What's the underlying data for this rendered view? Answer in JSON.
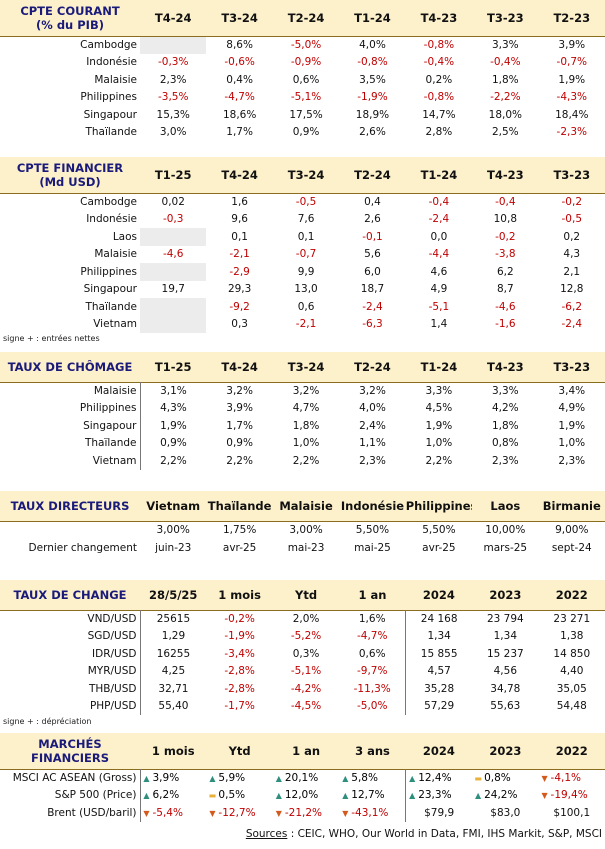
{
  "current_account": {
    "title_line1": "CPTE COURANT",
    "title_line2": "(% du PIB)",
    "columns": [
      "T4-24",
      "T3-24",
      "T2-24",
      "T1-24",
      "T4-23",
      "T3-23",
      "T2-23"
    ],
    "rows": [
      {
        "label": "Cambodge",
        "values": [
          "",
          "8,6%",
          "-5,0%",
          "4,0%",
          "-0,8%",
          "3,3%",
          "3,9%"
        ]
      },
      {
        "label": "Indonésie",
        "values": [
          "-0,3%",
          "-0,6%",
          "-0,9%",
          "-0,8%",
          "-0,4%",
          "-0,4%",
          "-0,7%"
        ]
      },
      {
        "label": "Malaisie",
        "values": [
          "2,3%",
          "0,4%",
          "0,6%",
          "3,5%",
          "0,2%",
          "1,8%",
          "1,9%"
        ]
      },
      {
        "label": "Philippines",
        "values": [
          "-3,5%",
          "-4,7%",
          "-5,1%",
          "-1,9%",
          "-0,8%",
          "-2,2%",
          "-4,3%"
        ]
      },
      {
        "label": "Singapour",
        "values": [
          "15,3%",
          "18,6%",
          "17,5%",
          "18,9%",
          "14,7%",
          "18,0%",
          "18,4%"
        ]
      },
      {
        "label": "Thaïlande",
        "values": [
          "3,0%",
          "1,7%",
          "0,9%",
          "2,6%",
          "2,8%",
          "2,5%",
          "-2,3%"
        ]
      }
    ]
  },
  "financial_account": {
    "title_line1": "CPTE FINANCIER",
    "title_line2": "(Md USD)",
    "columns": [
      "T1-25",
      "T4-24",
      "T3-24",
      "T2-24",
      "T1-24",
      "T4-23",
      "T3-23"
    ],
    "rows": [
      {
        "label": "Cambodge",
        "values": [
          "0,02",
          "1,6",
          "-0,5",
          "0,4",
          "-0,4",
          "-0,4",
          "-0,2"
        ]
      },
      {
        "label": "Indonésie",
        "values": [
          "-0,3",
          "9,6",
          "7,6",
          "2,6",
          "-2,4",
          "10,8",
          "-0,5"
        ]
      },
      {
        "label": "Laos",
        "values": [
          "",
          "0,1",
          "0,1",
          "-0,1",
          "0,0",
          "-0,2",
          "0,2"
        ]
      },
      {
        "label": "Malaisie",
        "values": [
          "-4,6",
          "-2,1",
          "-0,7",
          "5,6",
          "-4,4",
          "-3,8",
          "4,3"
        ]
      },
      {
        "label": "Philippines",
        "values": [
          "",
          "-2,9",
          "9,9",
          "6,0",
          "4,6",
          "6,2",
          "2,1"
        ]
      },
      {
        "label": "Singapour",
        "values": [
          "19,7",
          "29,3",
          "13,0",
          "18,7",
          "4,9",
          "8,7",
          "12,8"
        ]
      },
      {
        "label": "Thaïlande",
        "values": [
          "",
          "-9,2",
          "0,6",
          "-2,4",
          "-5,1",
          "-4,6",
          "-6,2"
        ]
      },
      {
        "label": "Vietnam",
        "values": [
          "",
          "0,3",
          "-2,1",
          "-6,3",
          "1,4",
          "-1,6",
          "-2,4"
        ]
      }
    ],
    "note": "signe + : entrées nettes"
  },
  "unemployment": {
    "title": "TAUX DE CHÔMAGE",
    "columns": [
      "T1-25",
      "T4-24",
      "T3-24",
      "T2-24",
      "T1-24",
      "T4-23",
      "T3-23"
    ],
    "rows": [
      {
        "label": "Malaisie",
        "values": [
          "3,1%",
          "3,2%",
          "3,2%",
          "3,2%",
          "3,3%",
          "3,3%",
          "3,4%"
        ]
      },
      {
        "label": "Philippines",
        "values": [
          "4,3%",
          "3,9%",
          "4,7%",
          "4,0%",
          "4,5%",
          "4,2%",
          "4,9%"
        ]
      },
      {
        "label": "Singapour",
        "values": [
          "1,9%",
          "1,7%",
          "1,8%",
          "2,4%",
          "1,9%",
          "1,8%",
          "1,9%"
        ]
      },
      {
        "label": "Thaïlande",
        "values": [
          "0,9%",
          "0,9%",
          "1,0%",
          "1,1%",
          "1,0%",
          "0,8%",
          "1,0%"
        ]
      },
      {
        "label": "Vietnam",
        "values": [
          "2,2%",
          "2,2%",
          "2,2%",
          "2,3%",
          "2,2%",
          "2,3%",
          "2,3%"
        ]
      }
    ]
  },
  "policy_rates": {
    "title": "TAUX DIRECTEURS",
    "columns": [
      "Vietnam",
      "Thaïlande",
      "Malaisie",
      "Indonésie",
      "Philippines",
      "Laos",
      "Birmanie"
    ],
    "rates": [
      "3,00%",
      "1,75%",
      "3,00%",
      "5,50%",
      "5,50%",
      "10,00%",
      "9,00%"
    ],
    "last_change_label": "Dernier changement",
    "last_changes": [
      "juin-23",
      "avr-25",
      "mai-23",
      "mai-25",
      "avr-25",
      "mars-25",
      "sept-24"
    ]
  },
  "exchange_rates": {
    "title": "TAUX DE CHANGE",
    "columns": [
      "28/5/25",
      "1 mois",
      "Ytd",
      "1 an",
      "2024",
      "2023",
      "2022"
    ],
    "rows": [
      {
        "label": "VND/USD",
        "values": [
          "25615",
          "-0,2%",
          "2,0%",
          "1,6%",
          "24 168",
          "23 794",
          "23 271"
        ]
      },
      {
        "label": "SGD/USD",
        "values": [
          "1,29",
          "-1,9%",
          "-5,2%",
          "-4,7%",
          "1,34",
          "1,34",
          "1,38"
        ]
      },
      {
        "label": "IDR/USD",
        "values": [
          "16255",
          "-3,4%",
          "0,3%",
          "0,6%",
          "15 855",
          "15 237",
          "14 850"
        ]
      },
      {
        "label": "MYR/USD",
        "values": [
          "4,25",
          "-2,8%",
          "-5,1%",
          "-9,7%",
          "4,57",
          "4,56",
          "4,40"
        ]
      },
      {
        "label": "THB/USD",
        "values": [
          "32,71",
          "-2,8%",
          "-4,2%",
          "-11,3%",
          "35,28",
          "34,78",
          "35,05"
        ]
      },
      {
        "label": "PHP/USD",
        "values": [
          "55,40",
          "-1,7%",
          "-4,5%",
          "-5,0%",
          "57,29",
          "55,63",
          "54,48"
        ]
      }
    ],
    "note": "signe + : dépréciation"
  },
  "markets": {
    "title_line1": "MARCHÉS",
    "title_line2": "FINANCIERS",
    "columns": [
      "1 mois",
      "Ytd",
      "1 an",
      "3 ans",
      "2024",
      "2023",
      "2022"
    ],
    "rows": [
      {
        "label": "MSCI AC ASEAN (Gross)",
        "values": [
          "3,9%",
          "5,9%",
          "20,1%",
          "5,8%",
          "12,4%",
          "0,8%",
          "-4,1%"
        ],
        "icons": [
          "triangle-up-icon",
          "triangle-up-icon",
          "triangle-up-icon",
          "triangle-up-icon",
          "triangle-up-icon",
          "flat-bar-icon",
          "triangle-down-icon"
        ]
      },
      {
        "label": "S&P 500 (Price)",
        "values": [
          "6,2%",
          "0,5%",
          "12,0%",
          "12,7%",
          "23,3%",
          "24,2%",
          "-19,4%"
        ],
        "icons": [
          "triangle-up-icon",
          "flat-bar-icon",
          "triangle-up-icon",
          "triangle-up-icon",
          "triangle-up-icon",
          "triangle-up-icon",
          "triangle-down-icon"
        ]
      },
      {
        "label": "Brent (USD/baril)",
        "values": [
          "-5,4%",
          "-12,7%",
          "-21,2%",
          "-43,1%",
          "$79,9",
          "$83,0",
          "$100,1"
        ],
        "icons": [
          "triangle-down-icon",
          "triangle-down-icon",
          "triangle-down-icon",
          "triangle-down-icon",
          "",
          "",
          ""
        ]
      }
    ]
  },
  "sources": {
    "label": "Sources",
    "text": " : CEIC, WHO, Our World in Data, FMI, IHS Markit, S&P, MSCI"
  },
  "colors": {
    "header_bg": "#fdf1cc",
    "title_blue": "#1a1a7a",
    "negative_red": "#c00000",
    "up_teal": "#2e8f7e",
    "down_orange": "#d35a1c",
    "flat_yellow": "#e8b23a"
  }
}
